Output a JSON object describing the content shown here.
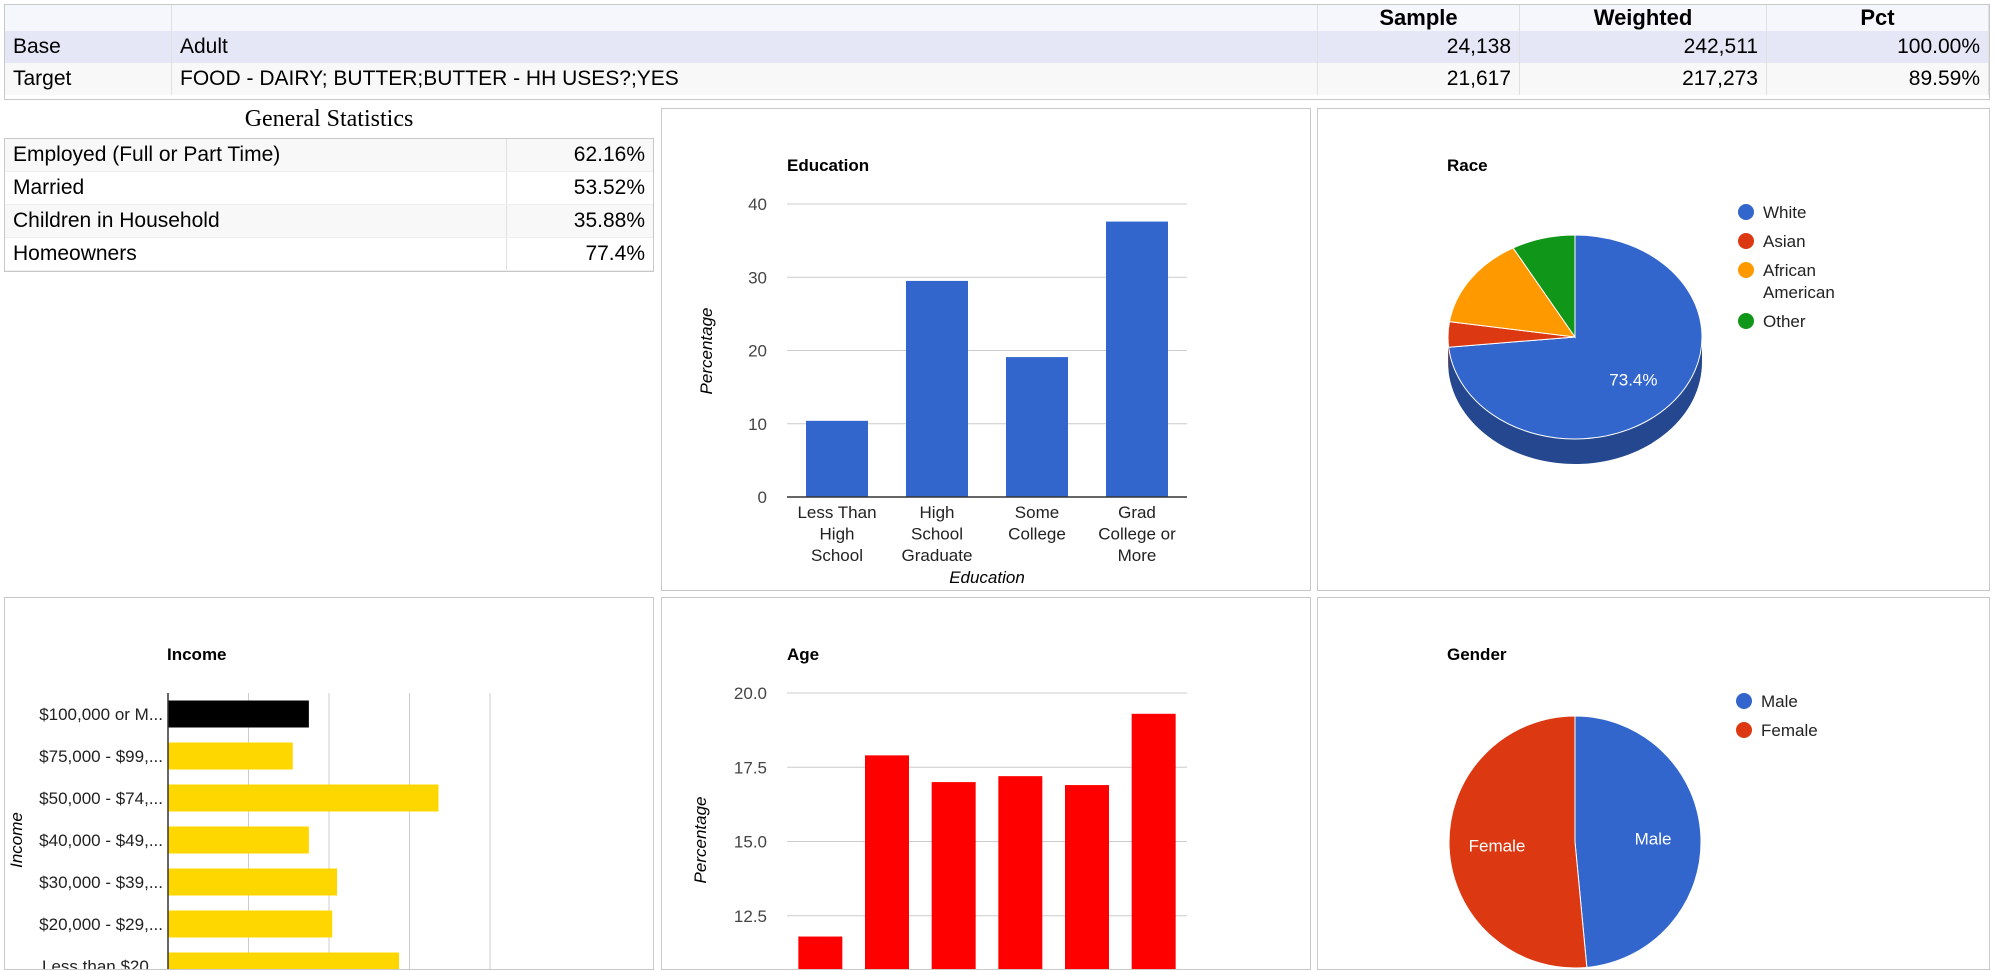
{
  "summary": {
    "headers": [
      "Sample",
      "Weighted",
      "Pct"
    ],
    "rows": [
      {
        "label": "Base",
        "desc": "Adult",
        "sample": "24,138",
        "weighted": "242,511",
        "pct": "100.00%"
      },
      {
        "label": "Target",
        "desc": "FOOD - DAIRY; BUTTER;BUTTER - HH USES?;YES",
        "sample": "21,617",
        "weighted": "217,273",
        "pct": "89.59%"
      }
    ]
  },
  "general_stats": {
    "title": "General Statistics",
    "rows": [
      {
        "label": "Employed (Full or Part Time)",
        "value": "62.16%"
      },
      {
        "label": "Married",
        "value": "53.52%"
      },
      {
        "label": "Children in Household",
        "value": "35.88%"
      },
      {
        "label": "Homeowners",
        "value": "77.4%"
      }
    ]
  },
  "chart_data": [
    {
      "id": "education",
      "type": "bar",
      "title": "Education",
      "xlabel": "Education",
      "ylabel": "Percentage",
      "categories": [
        [
          "Less Than",
          "High",
          "School"
        ],
        [
          "High",
          "School",
          "Graduate"
        ],
        [
          "Some",
          "College"
        ],
        [
          "Grad",
          "College or",
          "More"
        ]
      ],
      "values": [
        10.4,
        29.5,
        19.1,
        37.6
      ],
      "ylim": [
        0,
        40
      ],
      "yticks": [
        "0",
        "10",
        "20",
        "30",
        "40"
      ],
      "color": "#3366cc",
      "grid": true
    },
    {
      "id": "race",
      "type": "pie",
      "title": "Race",
      "labels": [
        "White",
        "Asian",
        "African American",
        "Other"
      ],
      "legend_lines": [
        [
          "White"
        ],
        [
          "Asian"
        ],
        [
          "African",
          "American"
        ],
        [
          "Other"
        ]
      ],
      "values": [
        73.4,
        4.0,
        14.5,
        8.1
      ],
      "colors": [
        "#3366cc",
        "#dc3912",
        "#ff9900",
        "#109618"
      ],
      "slice_label": "73.4%",
      "legend": "right"
    },
    {
      "id": "income",
      "type": "bar",
      "orientation": "horizontal",
      "title": "Income",
      "ylabel": "Income",
      "categories": [
        "$100,000 or M...",
        "$75,000 - $99,...",
        "$50,000 - $74,...",
        "$40,000 - $49,...",
        "$30,000 - $39,...",
        "$20,000 - $29,...",
        "Less than $20..."
      ],
      "values": [
        17.5,
        15.5,
        33.6,
        17.5,
        21.0,
        20.4,
        28.7
      ],
      "colors": [
        "#000000",
        "#ffd700",
        "#ffd700",
        "#ffd700",
        "#ffd700",
        "#ffd700",
        "#ffd700"
      ],
      "xlim": [
        0,
        40
      ],
      "grid": true
    },
    {
      "id": "age",
      "type": "bar",
      "title": "Age",
      "ylabel": "Percentage",
      "values": [
        11.8,
        17.9,
        17.0,
        17.2,
        16.9,
        19.3
      ],
      "ylim": [
        10,
        20
      ],
      "yticks": [
        "12.5",
        "15.0",
        "17.5",
        "20.0"
      ],
      "ytick_values": [
        12.5,
        15,
        17.5,
        20
      ],
      "color": "#ff0000",
      "grid": true
    },
    {
      "id": "gender",
      "type": "pie",
      "title": "Gender",
      "labels": [
        "Male",
        "Female"
      ],
      "values": [
        48.5,
        51.5
      ],
      "colors": [
        "#3366cc",
        "#dc3912"
      ],
      "slice_labels": [
        "Male",
        "Female"
      ],
      "legend": "right"
    }
  ]
}
